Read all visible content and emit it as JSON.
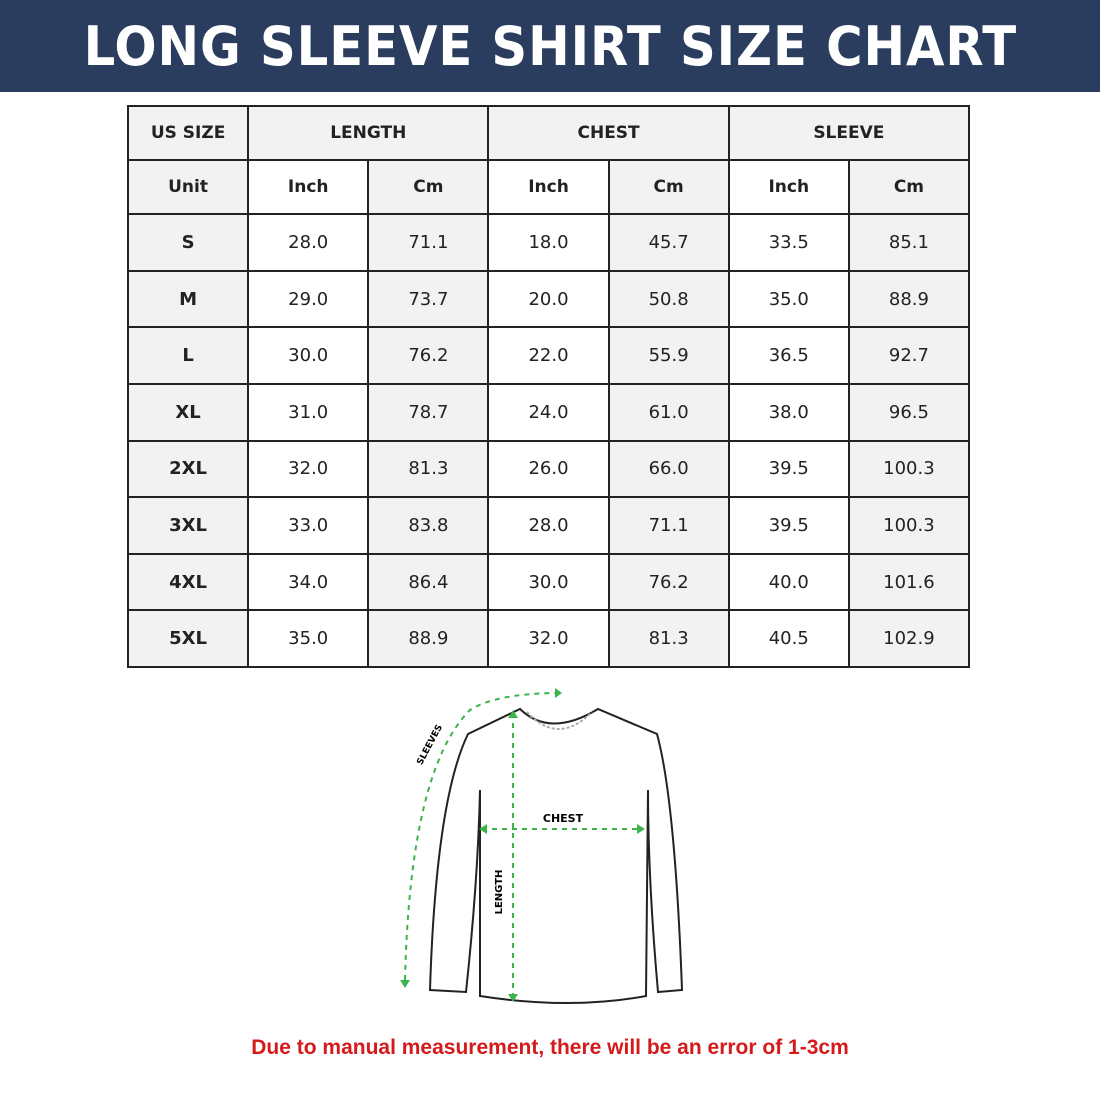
{
  "title": "LONG SLEEVE SHIRT SIZE CHART",
  "table": {
    "header": {
      "size": "US SIZE",
      "groups": [
        "LENGTH",
        "CHEST",
        "SLEEVE"
      ]
    },
    "units": [
      "Unit",
      "Inch",
      "Cm",
      "Inch",
      "Cm",
      "Inch",
      "Cm"
    ],
    "rows": [
      [
        "S",
        "28.0",
        "71.1",
        "18.0",
        "45.7",
        "33.5",
        "85.1"
      ],
      [
        "M",
        "29.0",
        "73.7",
        "20.0",
        "50.8",
        "35.0",
        "88.9"
      ],
      [
        "L",
        "30.0",
        "76.2",
        "22.0",
        "55.9",
        "36.5",
        "92.7"
      ],
      [
        "XL",
        "31.0",
        "78.7",
        "24.0",
        "61.0",
        "38.0",
        "96.5"
      ],
      [
        "2XL",
        "32.0",
        "81.3",
        "26.0",
        "66.0",
        "39.5",
        "100.3"
      ],
      [
        "3XL",
        "33.0",
        "83.8",
        "28.0",
        "71.1",
        "39.5",
        "100.3"
      ],
      [
        "4XL",
        "34.0",
        "86.4",
        "30.0",
        "76.2",
        "40.0",
        "101.6"
      ],
      [
        "5XL",
        "35.0",
        "88.9",
        "32.0",
        "81.3",
        "40.5",
        "102.9"
      ]
    ]
  },
  "diagram": {
    "sleeves_label": "SLEEVES",
    "chest_label": "CHEST",
    "length_label": "LENGTH",
    "measure_color": "#3cb44b"
  },
  "note": "Due to manual measurement, there will be an error of 1-3cm",
  "colors": {
    "banner": "#2b3d5e",
    "note": "#d41a1a"
  }
}
